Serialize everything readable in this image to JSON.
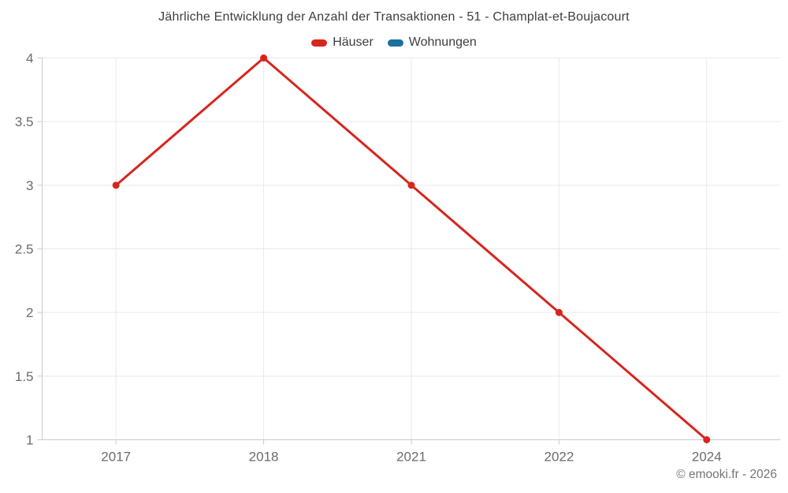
{
  "header": {
    "title": "Jährliche Entwicklung der Anzahl der Transaktionen - 51 - Champlat-et-Boujacourt"
  },
  "legend": {
    "items": [
      {
        "label": "Häuser",
        "color": "#d8251e"
      },
      {
        "label": "Wohnungen",
        "color": "#1a6fa0"
      }
    ]
  },
  "footer": {
    "copyright": "© emooki.fr - 2026"
  },
  "chart_data": {
    "type": "line",
    "title": "Jährliche Entwicklung der Anzahl der Transaktionen - 51 - Champlat-et-Boujacourt",
    "categories": [
      "2017",
      "2018",
      "2021",
      "2022",
      "2024"
    ],
    "series": [
      {
        "name": "Häuser",
        "color": "#d8251e",
        "values": [
          3,
          4,
          3,
          2,
          1
        ]
      },
      {
        "name": "Wohnungen",
        "color": "#1a6fa0",
        "values": []
      }
    ],
    "xlabel": "",
    "ylabel": "",
    "ylim": [
      1,
      4
    ],
    "y_ticks": [
      1,
      1.5,
      2,
      2.5,
      3,
      3.5,
      4
    ],
    "grid": true,
    "legend_position": "top",
    "marker": "circle",
    "grid_color": "#e9e9e9",
    "axis_color": "#cccccc",
    "tick_label_color": "#6b6b6b"
  }
}
